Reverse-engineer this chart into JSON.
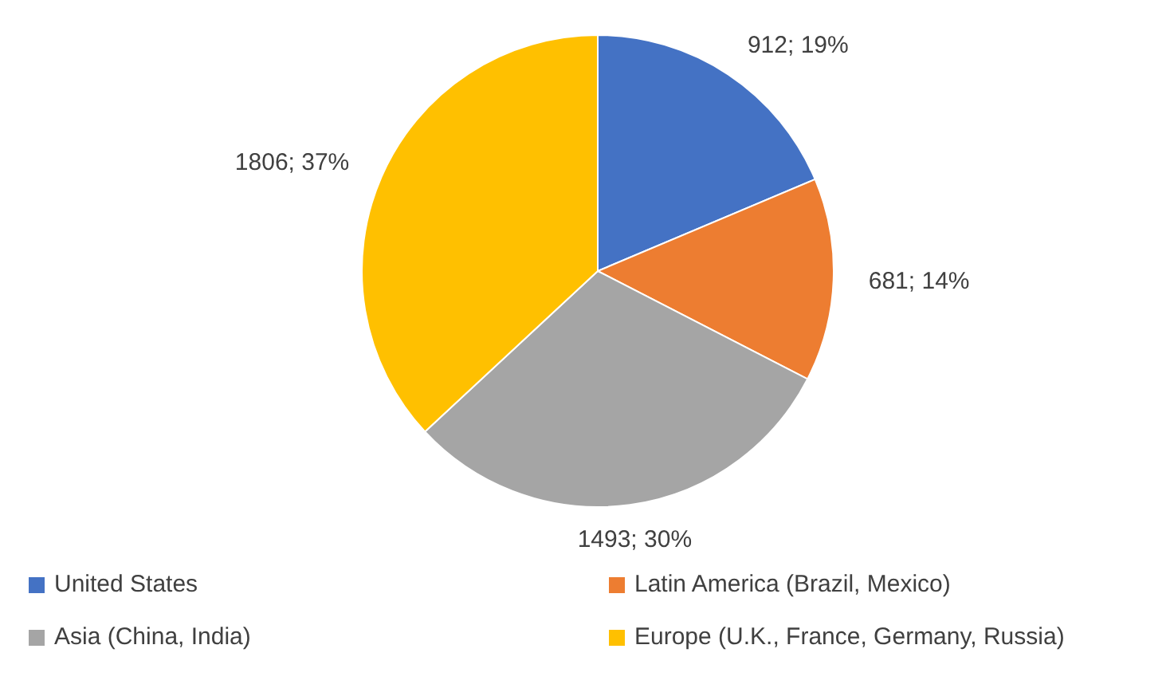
{
  "chart_data": {
    "type": "pie",
    "categories": [
      "United States",
      "Latin America (Brazil, Mexico)",
      "Asia (China, India)",
      "Europe (U.K., France, Germany, Russia)"
    ],
    "values": [
      912,
      681,
      1493,
      1806
    ],
    "colors": [
      "#4472c4",
      "#ed7d31",
      "#a5a5a5",
      "#ffc000"
    ],
    "value_labels": [
      "912; 19%",
      "681; 14%",
      "1493; 30%",
      "1806; 37%"
    ],
    "legend": "bottom"
  }
}
